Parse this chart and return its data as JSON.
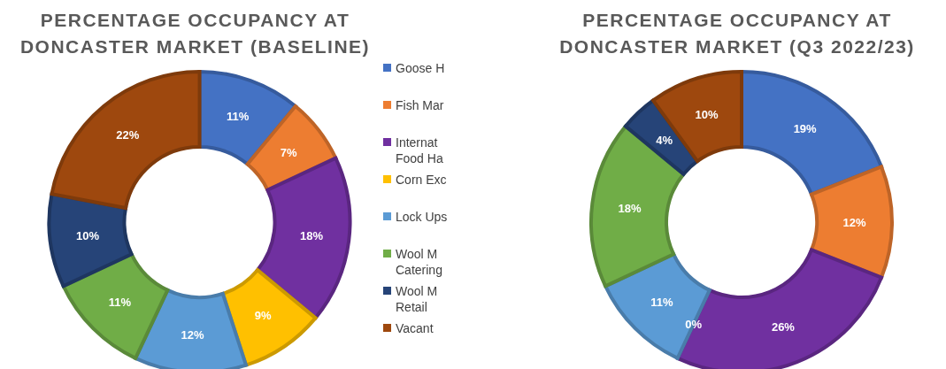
{
  "chart_data": [
    {
      "type": "donut",
      "title": "PERCENTAGE OCCUPANCY AT DONCASTER MARKET (BASELINE)",
      "categories": [
        "Goose H",
        "Fish Mar",
        "Internat Food Ha",
        "Corn Exc",
        "Lock Ups",
        "Wool M Catering",
        "Wool M Retail",
        "Vacant"
      ],
      "values": [
        11,
        7,
        18,
        9,
        12,
        11,
        10,
        22
      ],
      "value_labels": [
        "11%",
        "7%",
        "18%",
        "9%",
        "12%",
        "11%",
        "10%",
        "22%"
      ],
      "colors": [
        "#4472c4",
        "#ed7d31",
        "#7030a0",
        "#ffc000",
        "#5b9bd5",
        "#70ad47",
        "#264478",
        "#9e480e"
      ],
      "legend": "right"
    },
    {
      "type": "donut",
      "title": "PERCENTAGE OCCUPANCY AT DONCASTER MARKET (Q3 2022/23)",
      "categories": [
        null,
        null,
        null,
        null,
        null,
        null,
        null,
        null
      ],
      "values": [
        19,
        12,
        26,
        0,
        11,
        18,
        4,
        10
      ],
      "value_labels": [
        "19%",
        "12%",
        "26%",
        "0%",
        "11%",
        "18%",
        "4%",
        "10%"
      ],
      "colors": [
        "#4472c4",
        "#ed7d31",
        "#7030a0",
        "#ffc000",
        "#5b9bd5",
        "#70ad47",
        "#264478",
        "#9e480e"
      ]
    }
  ]
}
